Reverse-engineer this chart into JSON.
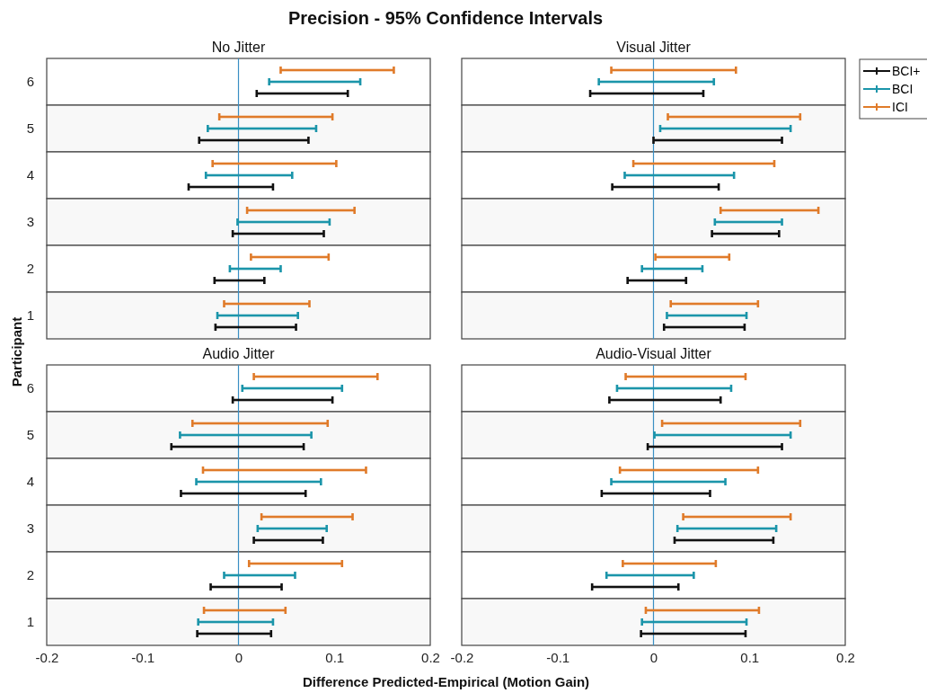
{
  "chart_data": [
    {
      "type": "bar",
      "orientation": "horizontal",
      "title": "No Jitter",
      "ylabel": "Participant",
      "annotations": [
        "Precision - 95% Confidence Intervals"
      ],
      "categories": [
        "6",
        "5",
        "4",
        "3",
        "2",
        "1"
      ],
      "xlim": [
        -0.2,
        0.2
      ],
      "xticks": [
        -0.2,
        -0.1,
        0,
        0.1,
        0.2
      ],
      "tick_labels": "y",
      "ref_lines": [
        {
          "axis": "x",
          "value": 0,
          "color": "#3a8fc4"
        }
      ],
      "series": [
        {
          "color": "#111111",
          "base": [
            0.019,
            -0.041,
            -0.052,
            -0.006,
            -0.025,
            -0.024
          ],
          "values": [
            0.095,
            0.114,
            0.088,
            0.095,
            0.052,
            0.084
          ]
        },
        {
          "color": "#1b95aa",
          "base": [
            0.032,
            -0.032,
            -0.034,
            -0.001,
            -0.009,
            -0.022
          ],
          "values": [
            0.095,
            0.113,
            0.09,
            0.096,
            0.053,
            0.084
          ]
        },
        {
          "color": "#e07b2a",
          "base": [
            0.044,
            -0.02,
            -0.027,
            0.009,
            0.013,
            -0.015
          ],
          "values": [
            0.118,
            0.118,
            0.129,
            0.112,
            0.081,
            0.089
          ]
        }
      ]
    },
    {
      "type": "bar",
      "orientation": "horizontal",
      "title": "Visual Jitter",
      "categories": [
        "6",
        "5",
        "4",
        "3",
        "2",
        "1"
      ],
      "xlim": [
        -0.2,
        0.2
      ],
      "xticks": [
        -0.2,
        -0.1,
        0,
        0.1,
        0.2
      ],
      "tick_labels": false,
      "legend": "top right",
      "ref_lines": [
        {
          "axis": "x",
          "value": 0,
          "color": "#3a8fc4"
        }
      ],
      "series": [
        {
          "name": "BCI+",
          "color": "#111111",
          "base": [
            -0.066,
            0.0,
            -0.043,
            0.061,
            -0.027,
            0.011
          ],
          "values": [
            0.118,
            0.134,
            0.111,
            0.07,
            0.061,
            0.084
          ]
        },
        {
          "name": "BCI",
          "color": "#1b95aa",
          "base": [
            -0.057,
            0.007,
            -0.03,
            0.064,
            -0.012,
            0.014
          ],
          "values": [
            0.12,
            0.136,
            0.114,
            0.07,
            0.063,
            0.083
          ]
        },
        {
          "name": "ICI",
          "color": "#e07b2a",
          "base": [
            -0.044,
            0.015,
            -0.021,
            0.07,
            0.002,
            0.018
          ],
          "values": [
            0.13,
            0.138,
            0.147,
            0.102,
            0.077,
            0.091
          ]
        }
      ]
    },
    {
      "type": "bar",
      "orientation": "horizontal",
      "title": "Audio Jitter",
      "xlabel": "Difference Predicted-Empirical (Motion Gain)",
      "categories": [
        "6",
        "5",
        "4",
        "3",
        "2",
        "1"
      ],
      "xlim": [
        -0.2,
        0.2
      ],
      "xticks": [
        -0.2,
        -0.1,
        0,
        0.1,
        0.2
      ],
      "ref_lines": [
        {
          "axis": "x",
          "value": 0,
          "color": "#3a8fc4"
        }
      ],
      "series": [
        {
          "color": "#111111",
          "base": [
            -0.006,
            -0.07,
            -0.06,
            0.016,
            -0.029,
            -0.043
          ],
          "values": [
            0.104,
            0.138,
            0.13,
            0.072,
            0.074,
            0.077
          ]
        },
        {
          "color": "#1b95aa",
          "base": [
            0.004,
            -0.061,
            -0.044,
            0.02,
            -0.015,
            -0.042
          ],
          "values": [
            0.104,
            0.137,
            0.13,
            0.072,
            0.074,
            0.078
          ]
        },
        {
          "color": "#e07b2a",
          "base": [
            0.016,
            -0.048,
            -0.037,
            0.024,
            0.011,
            -0.036
          ],
          "values": [
            0.129,
            0.141,
            0.17,
            0.095,
            0.097,
            0.085
          ]
        }
      ]
    },
    {
      "type": "bar",
      "orientation": "horizontal",
      "title": "Audio-Visual Jitter",
      "categories": [
        "6",
        "5",
        "4",
        "3",
        "2",
        "1"
      ],
      "xlim": [
        -0.2,
        0.2
      ],
      "xticks": [
        -0.2,
        -0.1,
        0,
        0.1,
        0.2
      ],
      "tick_labels": "x",
      "ref_lines": [
        {
          "axis": "x",
          "value": 0,
          "color": "#3a8fc4"
        }
      ],
      "series": [
        {
          "color": "#111111",
          "base": [
            -0.046,
            -0.006,
            -0.054,
            0.022,
            -0.064,
            -0.013
          ],
          "values": [
            0.116,
            0.14,
            0.113,
            0.103,
            0.09,
            0.109
          ]
        },
        {
          "color": "#1b95aa",
          "base": [
            -0.038,
            0.001,
            -0.044,
            0.025,
            -0.049,
            -0.012
          ],
          "values": [
            0.119,
            0.142,
            0.119,
            0.103,
            0.091,
            0.109
          ]
        },
        {
          "color": "#e07b2a",
          "base": [
            -0.029,
            0.009,
            -0.035,
            0.031,
            -0.032,
            -0.008
          ],
          "values": [
            0.125,
            0.144,
            0.144,
            0.112,
            0.097,
            0.118
          ]
        }
      ]
    }
  ]
}
